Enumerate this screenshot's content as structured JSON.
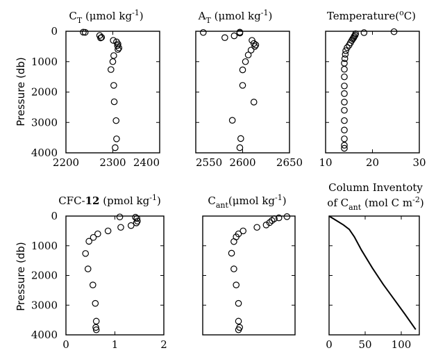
{
  "figure": {
    "ylabel": "Pressure (db)"
  },
  "chart_data": [
    {
      "type": "scatter",
      "title_parts": [
        {
          "t": "C"
        },
        {
          "t": "T",
          "sub": true
        },
        {
          "t": " (μmol kg"
        },
        {
          "t": "-1",
          "sup": true
        },
        {
          "t": ")"
        }
      ],
      "xlim": [
        2200,
        2400
      ],
      "ylim": [
        4000,
        0
      ],
      "xticks": [
        2200,
        2300,
        2400
      ],
      "yticks": [
        0,
        1000,
        2000,
        3000,
        4000
      ],
      "points": [
        [
          2237,
          30
        ],
        [
          2241,
          35
        ],
        [
          2272,
          140
        ],
        [
          2276,
          200
        ],
        [
          2274,
          220
        ],
        [
          2301,
          300
        ],
        [
          2308,
          350
        ],
        [
          2311,
          420
        ],
        [
          2310,
          470
        ],
        [
          2313,
          550
        ],
        [
          2311,
          600
        ],
        [
          2302,
          800
        ],
        [
          2300,
          1000
        ],
        [
          2296,
          1260
        ],
        [
          2302,
          1780
        ],
        [
          2303,
          2320
        ],
        [
          2307,
          2940
        ],
        [
          2308,
          3540
        ],
        [
          2305,
          3830
        ]
      ]
    },
    {
      "type": "scatter",
      "title_parts": [
        {
          "t": "A"
        },
        {
          "t": "T",
          "sub": true
        },
        {
          "t": " (μmol kg"
        },
        {
          "t": "-1",
          "sup": true
        },
        {
          "t": ")"
        }
      ],
      "xlim": [
        2550,
        2650
      ],
      "ylim": [
        4000,
        0
      ],
      "xticks": [
        2550,
        2600,
        2650
      ],
      "yticks": [
        0,
        1000,
        2000,
        3000,
        4000
      ],
      "points": [
        [
          2558,
          40
        ],
        [
          2597,
          30
        ],
        [
          2597,
          60
        ],
        [
          2591,
          150
        ],
        [
          2581,
          210
        ],
        [
          2610,
          300
        ],
        [
          2612,
          400
        ],
        [
          2614,
          450
        ],
        [
          2613,
          500
        ],
        [
          2609,
          620
        ],
        [
          2606,
          780
        ],
        [
          2603,
          1000
        ],
        [
          2600,
          1270
        ],
        [
          2600,
          1780
        ],
        [
          2612,
          2330
        ],
        [
          2589,
          2930
        ],
        [
          2598,
          3530
        ],
        [
          2597,
          3830
        ]
      ]
    },
    {
      "type": "scatter",
      "title_parts": [
        {
          "t": "Temperature("
        },
        {
          "t": "o",
          "sup": true
        },
        {
          "t": "C)"
        }
      ],
      "xlim": [
        10,
        30
      ],
      "ylim": [
        4000,
        0
      ],
      "xticks": [
        10,
        20,
        30
      ],
      "yticks": [
        0,
        1000,
        2000,
        3000,
        4000
      ],
      "points": [
        [
          24.6,
          15
        ],
        [
          18.2,
          45
        ],
        [
          16.4,
          80
        ],
        [
          16.3,
          130
        ],
        [
          16.1,
          170
        ],
        [
          16.0,
          210
        ],
        [
          15.8,
          250
        ],
        [
          15.6,
          300
        ],
        [
          15.3,
          380
        ],
        [
          15.0,
          460
        ],
        [
          14.6,
          540
        ],
        [
          14.3,
          640
        ],
        [
          14.2,
          760
        ],
        [
          14.1,
          900
        ],
        [
          14.0,
          1050
        ],
        [
          14.0,
          1250
        ],
        [
          14.0,
          1500
        ],
        [
          14.0,
          1800
        ],
        [
          14.0,
          2050
        ],
        [
          14.0,
          2330
        ],
        [
          14.0,
          2600
        ],
        [
          14.0,
          2940
        ],
        [
          14.0,
          3250
        ],
        [
          14.0,
          3540
        ],
        [
          14.0,
          3750
        ],
        [
          14.0,
          3850
        ]
      ]
    },
    {
      "type": "scatter",
      "title_parts": [
        {
          "t": "CFC-"
        },
        {
          "t": "12",
          "bold": true
        },
        {
          "t": " (pmol kg"
        },
        {
          "t": "-1",
          "sup": true
        },
        {
          "t": ")"
        }
      ],
      "xlim": [
        0,
        2
      ],
      "ylim": [
        4000,
        0
      ],
      "xticks": [
        0,
        1,
        2
      ],
      "yticks": [
        0,
        1000,
        2000,
        3000,
        4000
      ],
      "points": [
        [
          1.42,
          40
        ],
        [
          1.45,
          80
        ],
        [
          1.46,
          170
        ],
        [
          1.44,
          230
        ],
        [
          1.1,
          30
        ],
        [
          1.33,
          320
        ],
        [
          1.12,
          380
        ],
        [
          0.86,
          500
        ],
        [
          0.65,
          600
        ],
        [
          0.56,
          720
        ],
        [
          0.47,
          850
        ],
        [
          0.4,
          1260
        ],
        [
          0.45,
          1780
        ],
        [
          0.55,
          2320
        ],
        [
          0.6,
          2940
        ],
        [
          0.62,
          3540
        ],
        [
          0.61,
          3750
        ],
        [
          0.62,
          3830
        ]
      ]
    },
    {
      "type": "scatter",
      "title_parts": [
        {
          "t": "C"
        },
        {
          "t": "ant",
          "sub": true
        },
        {
          "t": "(μmol kg"
        },
        {
          "t": "-1",
          "sup": true
        },
        {
          "t": ")"
        }
      ],
      "xlim": [
        0,
        80
      ],
      "ylim": [
        4000,
        0
      ],
      "xticks": [],
      "yticks": [
        0,
        1000,
        2000,
        3000,
        4000
      ],
      "points": [
        [
          73,
          20
        ],
        [
          66,
          60
        ],
        [
          62,
          90
        ],
        [
          60,
          150
        ],
        [
          58,
          220
        ],
        [
          55,
          300
        ],
        [
          47,
          380
        ],
        [
          35,
          500
        ],
        [
          31,
          600
        ],
        [
          29,
          700
        ],
        [
          27,
          860
        ],
        [
          25,
          1250
        ],
        [
          27,
          1780
        ],
        [
          29,
          2320
        ],
        [
          31,
          2940
        ],
        [
          31,
          3540
        ],
        [
          32,
          3750
        ],
        [
          31,
          3830
        ]
      ]
    },
    {
      "type": "line",
      "title_parts": [
        {
          "t": "Column Inventoty",
          "line": 1
        },
        {
          "t": "of C",
          "line": 2
        },
        {
          "t": "ant",
          "sub": true,
          "line": 2
        },
        {
          "t": " (mol C m",
          "line": 2
        },
        {
          "t": "-2",
          "sup": true,
          "line": 2
        },
        {
          "t": ")",
          "line": 2
        }
      ],
      "xlim": [
        0,
        125
      ],
      "ylim": [
        4000,
        0
      ],
      "xticks": [
        0,
        50,
        100
      ],
      "yticks": [
        0,
        1000,
        2000,
        3000,
        4000
      ],
      "x": [
        0,
        10,
        20,
        28,
        35,
        45,
        60,
        75,
        90,
        105,
        120
      ],
      "y": [
        0,
        150,
        300,
        450,
        700,
        1150,
        1750,
        2300,
        2800,
        3300,
        3820
      ]
    }
  ]
}
